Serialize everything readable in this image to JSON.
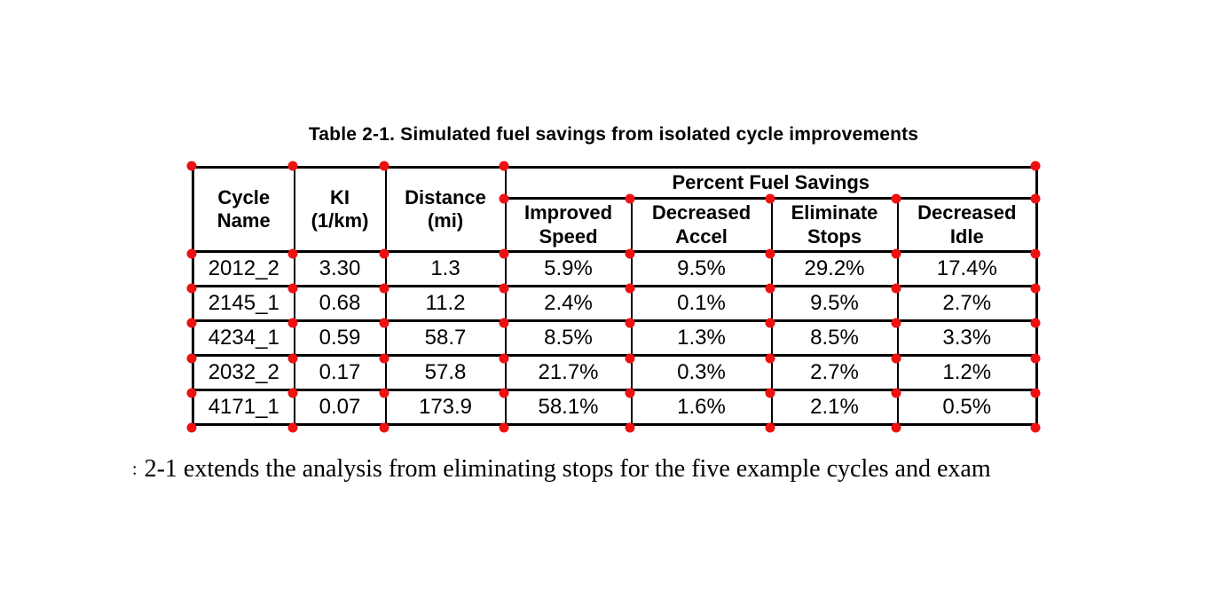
{
  "caption": "Table 2-1. Simulated fuel savings from isolated cycle improvements",
  "table": {
    "col_headers": {
      "cycle_name": "Cycle\nName",
      "ki": "KI\n(1/km)",
      "distance": "Distance\n(mi)",
      "group": "Percent Fuel Savings",
      "improved_speed": "Improved\nSpeed",
      "decreased_accel": "Decreased\nAccel",
      "eliminate_stops": "Eliminate\nStops",
      "decreased_idle": "Decreased\nIdle"
    },
    "rows": [
      [
        "2012_2",
        "3.30",
        "1.3",
        "5.9%",
        "9.5%",
        "29.2%",
        "17.4%"
      ],
      [
        "2145_1",
        "0.68",
        "11.2",
        "2.4%",
        "0.1%",
        "9.5%",
        "2.7%"
      ],
      [
        "4234_1",
        "0.59",
        "58.7",
        "8.5%",
        "1.3%",
        "8.5%",
        "3.3%"
      ],
      [
        "2032_2",
        "0.17",
        "57.8",
        "21.7%",
        "0.3%",
        "2.7%",
        "1.2%"
      ],
      [
        "4171_1",
        "0.07",
        "173.9",
        "58.1%",
        "1.6%",
        "2.1%",
        "0.5%"
      ]
    ]
  },
  "body_text": {
    "fragment": ":",
    "text": "2-1 extends the analysis from eliminating stops for the five example cycles and exam"
  },
  "annotation": {
    "dot_color": "#ee1111"
  }
}
